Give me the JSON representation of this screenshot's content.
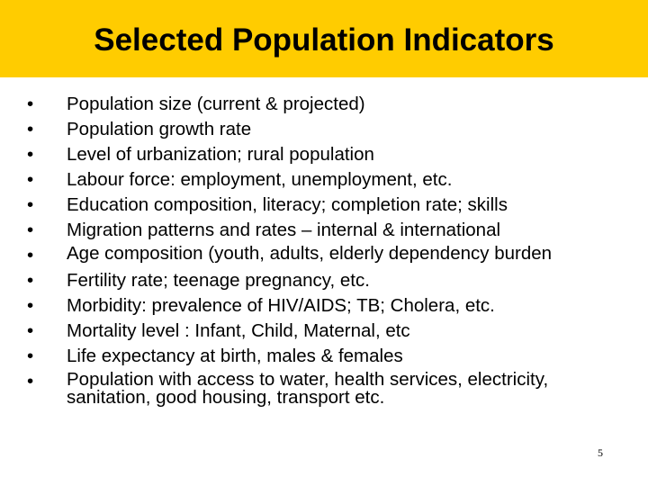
{
  "slide": {
    "title": "Selected Population Indicators",
    "accent_color": "#ffcc00",
    "bullet_glyph": "•",
    "page_number": "5",
    "bullets": [
      "Population size (current & projected)",
      "Population growth rate",
      "Level of urbanization; rural population",
      "Labour force: employment, unemployment, etc.",
      "Education composition, literacy; completion rate; skills",
      "Migration patterns and rates – internal & international",
      "Age composition (youth, adults, elderly dependency burden",
      "Fertility rate; teenage pregnancy, etc.",
      "Morbidity: prevalence of HIV/AIDS; TB; Cholera, etc.",
      "Mortality level : Infant, Child, Maternal, etc",
      "Life expectancy at birth, males & females",
      "Population with access to water, health services, electricity, sanitation, good housing, transport etc."
    ]
  }
}
